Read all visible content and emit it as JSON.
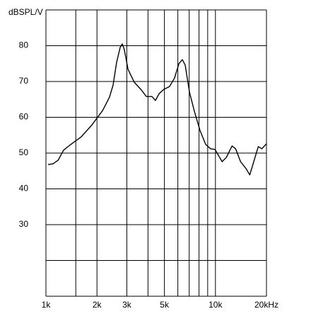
{
  "chart_data": {
    "type": "line",
    "y_label": "dBSPL/V",
    "x_scale": "log",
    "xlim": [
      1000,
      20000
    ],
    "xticks": [
      {
        "value": 1000,
        "label": "1k"
      },
      {
        "value": 2000,
        "label": "2k"
      },
      {
        "value": 3000,
        "label": "3k"
      },
      {
        "value": 5000,
        "label": "5k"
      },
      {
        "value": 10000,
        "label": "10k"
      },
      {
        "value": 20000,
        "label": "20kHz"
      }
    ],
    "xgrid": [
      1000,
      1500,
      2000,
      3000,
      4000,
      5000,
      6000,
      7000,
      8000,
      9000,
      10000,
      20000
    ],
    "ylim": [
      10,
      90
    ],
    "yticks": [
      30,
      40,
      50,
      60,
      70,
      80
    ],
    "ygrid": [
      10,
      20,
      30,
      40,
      50,
      60,
      70,
      80,
      90
    ],
    "grid": true,
    "series": [
      {
        "color": "#000000",
        "x": [
          1030,
          1100,
          1180,
          1270,
          1400,
          1620,
          1870,
          2160,
          2370,
          2490,
          2610,
          2740,
          2820,
          2900,
          3050,
          3320,
          3660,
          3910,
          4220,
          4430,
          4650,
          4960,
          5360,
          5740,
          6090,
          6380,
          6630,
          7030,
          7510,
          8110,
          8760,
          9370,
          9950,
          10340,
          10950,
          11600,
          12530,
          13150,
          14070,
          15180,
          15940,
          16730,
          17890,
          18770,
          20000
        ],
        "values": [
          46.8,
          47.0,
          48.0,
          50.8,
          52.4,
          54.6,
          57.9,
          61.9,
          65.6,
          69.0,
          75.3,
          79.5,
          80.5,
          78.9,
          73.4,
          69.8,
          67.6,
          65.8,
          65.8,
          64.7,
          66.6,
          67.8,
          68.6,
          71.0,
          75.0,
          76.1,
          74.6,
          67.0,
          61.7,
          56.3,
          52.4,
          51.2,
          51.0,
          49.6,
          47.6,
          48.8,
          52.0,
          51.2,
          47.6,
          45.6,
          43.9,
          47.2,
          51.8,
          51.2,
          52.6
        ]
      }
    ]
  }
}
